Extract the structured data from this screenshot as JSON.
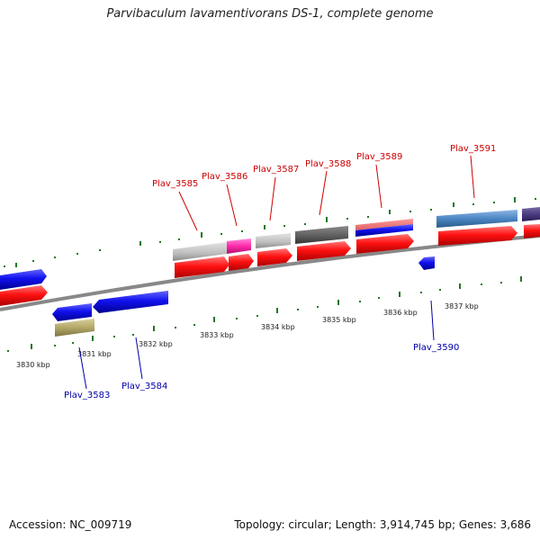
{
  "title": "Parvibaculum lavamentivorans DS-1, complete genome",
  "footer": {
    "accession": "Accession: NC_009719",
    "summary": "Topology: circular; Length: 3,914,745 bp; Genes: 3,686"
  },
  "ticks": [
    "3830 kbp",
    "3831 kbp",
    "3832 kbp",
    "3833 kbp",
    "3834 kbp",
    "3835 kbp",
    "3836 kbp",
    "3837 kbp"
  ],
  "labels": {
    "forward": [
      "Plav_3585",
      "Plav_3586",
      "Plav_3587",
      "Plav_3588",
      "Plav_3589",
      "Plav_3591"
    ],
    "reverse": [
      "Plav_3583",
      "Plav_3584",
      "Plav_3590"
    ]
  },
  "colors": {
    "forward_label": "#cc0000",
    "reverse_label": "#0000aa",
    "cds": "#ee1111",
    "gene_reverse": "#1a1aee",
    "backbone": "#888888",
    "tick": "#227722"
  }
}
